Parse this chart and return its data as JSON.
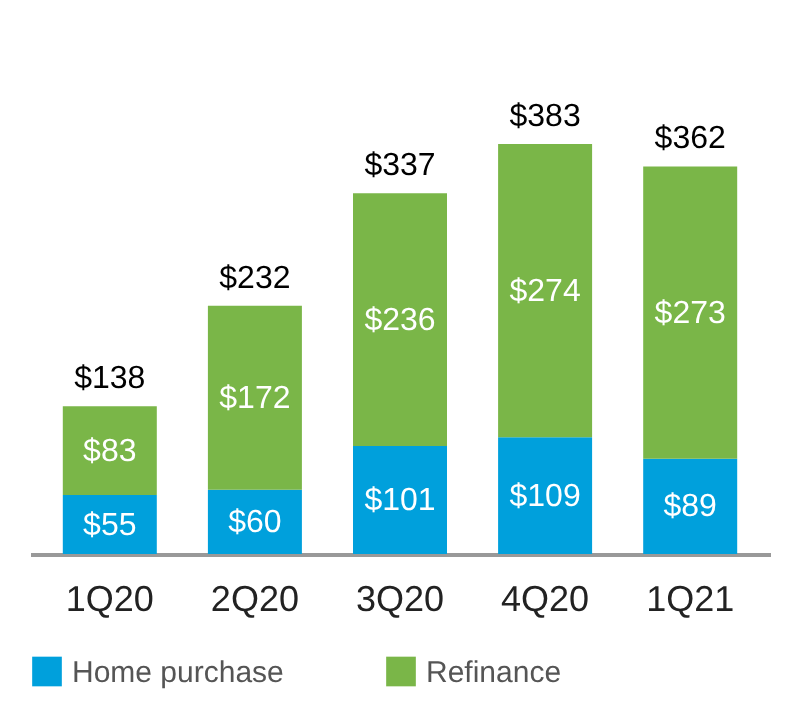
{
  "chart_data": {
    "type": "bar",
    "stacked": true,
    "categories": [
      "1Q20",
      "2Q20",
      "3Q20",
      "4Q20",
      "1Q21"
    ],
    "series": [
      {
        "name": "Home purchase",
        "color": "#00a0dc",
        "values": [
          55,
          60,
          101,
          109,
          89
        ],
        "value_labels": [
          "$55",
          "$60",
          "$101",
          "$109",
          "$89"
        ]
      },
      {
        "name": "Refinance",
        "color": "#7ab648",
        "values": [
          83,
          172,
          236,
          274,
          273
        ],
        "value_labels": [
          "$83",
          "$172",
          "$236",
          "$274",
          "$273"
        ]
      }
    ],
    "totals": [
      "$138",
      "$232",
      "$337",
      "$383",
      "$362"
    ],
    "legend": "bottom",
    "grid": false
  }
}
